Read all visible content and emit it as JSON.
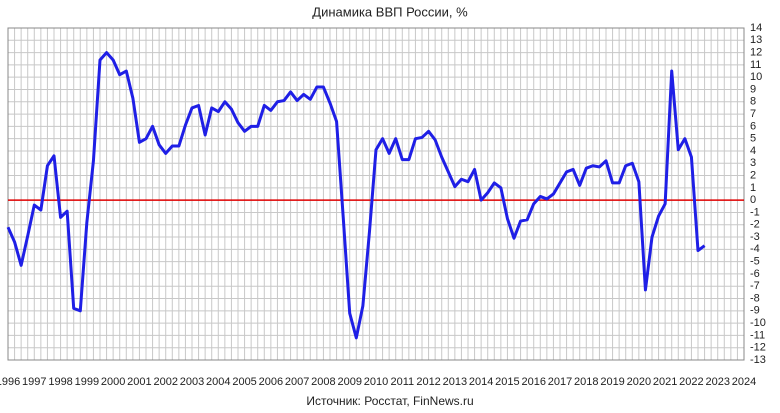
{
  "chart_data": {
    "type": "line",
    "title": "Динамика ВВП России, %",
    "source": "Источник: Росстат, FinNews.ru",
    "x": [
      1996,
      1996.25,
      1996.5,
      1996.75,
      1997,
      1997.25,
      1997.5,
      1997.75,
      1998,
      1998.25,
      1998.5,
      1998.75,
      1999,
      1999.25,
      1999.5,
      1999.75,
      2000,
      2000.25,
      2000.5,
      2000.75,
      2001,
      2001.25,
      2001.5,
      2001.75,
      2002,
      2002.25,
      2002.5,
      2002.75,
      2003,
      2003.25,
      2003.5,
      2003.75,
      2004,
      2004.25,
      2004.5,
      2004.75,
      2005,
      2005.25,
      2005.5,
      2005.75,
      2006,
      2006.25,
      2006.5,
      2006.75,
      2007,
      2007.25,
      2007.5,
      2007.75,
      2008,
      2008.25,
      2008.5,
      2008.75,
      2009,
      2009.25,
      2009.5,
      2009.75,
      2010,
      2010.25,
      2010.5,
      2010.75,
      2011,
      2011.25,
      2011.5,
      2011.75,
      2012,
      2012.25,
      2012.5,
      2012.75,
      2013,
      2013.25,
      2013.5,
      2013.75,
      2014,
      2014.25,
      2014.5,
      2014.75,
      2015,
      2015.25,
      2015.5,
      2015.75,
      2016,
      2016.25,
      2016.5,
      2016.75,
      2017,
      2017.25,
      2017.5,
      2017.75,
      2018,
      2018.25,
      2018.5,
      2018.75,
      2019,
      2019.25,
      2019.5,
      2019.75,
      2020,
      2020.25,
      2020.5,
      2020.75,
      2021,
      2021.25,
      2021.5,
      2021.75,
      2022,
      2022.25,
      2022.5
    ],
    "series": [
      {
        "name": "ВВП",
        "color": "#1f1fe6",
        "values": [
          -2.2,
          -3.4,
          -5.3,
          -2.9,
          -0.4,
          -0.8,
          2.8,
          3.6,
          -1.4,
          -0.9,
          -8.8,
          -9.0,
          -1.8,
          3.2,
          11.4,
          12.0,
          11.4,
          10.2,
          10.5,
          8.3,
          4.7,
          5.0,
          6.0,
          4.5,
          3.8,
          4.4,
          4.4,
          6.1,
          7.5,
          7.7,
          5.3,
          7.5,
          7.2,
          8.0,
          7.4,
          6.3,
          5.6,
          6.0,
          6.0,
          7.7,
          7.3,
          8.0,
          8.1,
          8.8,
          8.1,
          8.6,
          8.2,
          9.2,
          9.2,
          7.9,
          6.4,
          -1.3,
          -9.2,
          -11.2,
          -8.6,
          -2.6,
          4.1,
          5.0,
          3.8,
          5.0,
          3.3,
          3.3,
          5.0,
          5.1,
          5.6,
          4.9,
          3.5,
          2.3,
          1.1,
          1.7,
          1.5,
          2.5,
          0.0,
          0.6,
          1.4,
          1.0,
          -1.5,
          -3.1,
          -1.7,
          -1.6,
          -0.3,
          0.3,
          0.1,
          0.5,
          1.4,
          2.3,
          2.5,
          1.2,
          2.6,
          2.8,
          2.7,
          3.2,
          1.4,
          1.4,
          2.8,
          3.0,
          1.5,
          -7.3,
          -3.0,
          -1.3,
          -0.3,
          10.5,
          4.1,
          5.0,
          3.5,
          -4.1,
          -3.7
        ]
      }
    ],
    "xlim": [
      1996,
      2024
    ],
    "xticks": [
      1996,
      1997,
      1998,
      1999,
      2000,
      2001,
      2002,
      2003,
      2004,
      2005,
      2006,
      2007,
      2008,
      2009,
      2010,
      2011,
      2012,
      2013,
      2014,
      2015,
      2016,
      2017,
      2018,
      2019,
      2020,
      2021,
      2022,
      2023,
      2024
    ],
    "ylim": [
      -13,
      14
    ],
    "yticks": [
      -13,
      -12,
      -11,
      -10,
      -9,
      -8,
      -7,
      -6,
      -5,
      -4,
      -3,
      -2,
      -1,
      0,
      1,
      2,
      3,
      4,
      5,
      6,
      7,
      8,
      9,
      10,
      11,
      12,
      13,
      14
    ],
    "grid": true,
    "reference_line": {
      "value": 0,
      "color": "#e00000"
    }
  }
}
